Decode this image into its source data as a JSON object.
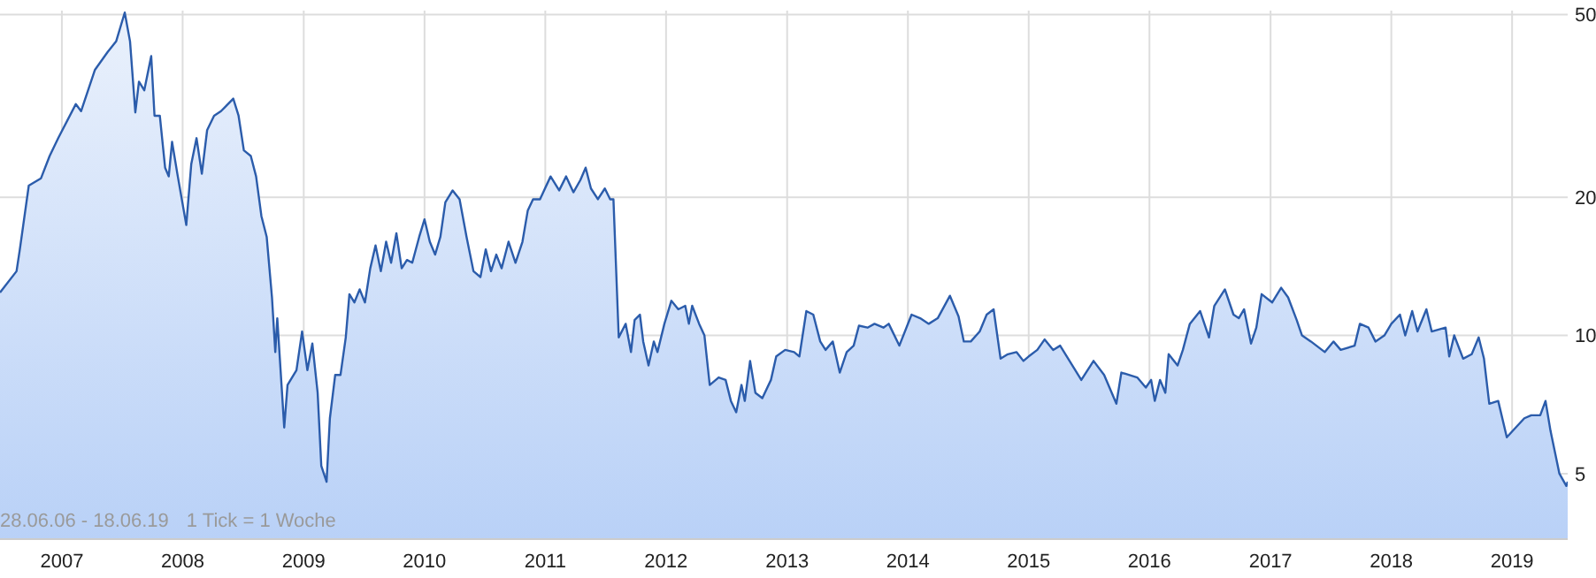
{
  "chart_data": {
    "type": "area",
    "log": true,
    "grid": true,
    "xlim": [
      "2006-06-28",
      "2019-06-18"
    ],
    "xticks": [
      {
        "value": "2007",
        "label": "2007"
      },
      {
        "value": "2008",
        "label": "2008"
      },
      {
        "value": "2009",
        "label": "2009"
      },
      {
        "value": "2010",
        "label": "2010"
      },
      {
        "value": "2011",
        "label": "2011"
      },
      {
        "value": "2012",
        "label": "2012"
      },
      {
        "value": "2013",
        "label": "2013"
      },
      {
        "value": "2014",
        "label": "2014"
      },
      {
        "value": "2015",
        "label": "2015"
      },
      {
        "value": "2016",
        "label": "2016"
      },
      {
        "value": "2017",
        "label": "2017"
      },
      {
        "value": "2018",
        "label": "2018"
      },
      {
        "value": "2019",
        "label": "2019"
      }
    ],
    "ylim": [
      3.6,
      51
    ],
    "yticks": [
      5,
      10,
      20,
      50
    ],
    "annotations": [
      "28.06.06 - 18.06.19",
      "1 Tick = 1 Woche"
    ],
    "x": [
      "2006-06-28",
      "2006-08-17",
      "2006-08-27",
      "2006-09-23",
      "2006-10-30",
      "2006-11-25",
      "2006-12-21",
      "2007-02-12",
      "2007-02-28",
      "2007-04-11",
      "2007-05-19",
      "2007-06-14",
      "2007-07-10",
      "2007-07-26",
      "2007-08-11",
      "2007-08-22",
      "2007-09-07",
      "2007-09-28",
      "2007-10-08",
      "2007-10-24",
      "2007-11-09",
      "2007-11-20",
      "2007-11-30",
      "2007-12-16",
      "2008-01-12",
      "2008-01-27",
      "2008-02-12",
      "2008-02-28",
      "2008-03-15",
      "2008-04-05",
      "2008-04-26",
      "2008-06-02",
      "2008-06-18",
      "2008-07-04",
      "2008-07-25",
      "2008-08-10",
      "2008-08-26",
      "2008-09-11",
      "2008-09-27",
      "2008-10-07",
      "2008-10-13",
      "2008-10-23",
      "2008-11-03",
      "2008-11-13",
      "2008-12-10",
      "2008-12-27",
      "2009-01-12",
      "2009-01-27",
      "2009-02-12",
      "2009-02-23",
      "2009-03-11",
      "2009-03-21",
      "2009-04-06",
      "2009-04-22",
      "2009-05-08",
      "2009-05-19",
      "2009-06-03",
      "2009-06-19",
      "2009-07-05",
      "2009-07-21",
      "2009-08-06",
      "2009-08-22",
      "2009-09-07",
      "2009-09-22",
      "2009-10-08",
      "2009-10-24",
      "2009-11-09",
      "2009-11-25",
      "2009-12-16",
      "2010-01-01",
      "2010-01-17",
      "2010-02-02",
      "2010-02-18",
      "2010-03-05",
      "2010-03-27",
      "2010-04-17",
      "2010-05-08",
      "2010-05-29",
      "2010-06-19",
      "2010-07-05",
      "2010-07-21",
      "2010-08-06",
      "2010-08-22",
      "2010-09-12",
      "2010-10-03",
      "2010-10-24",
      "2010-11-09",
      "2010-11-25",
      "2010-12-16",
      "2011-01-17",
      "2011-02-12",
      "2011-03-05",
      "2011-03-27",
      "2011-04-17",
      "2011-05-03",
      "2011-05-19",
      "2011-06-09",
      "2011-06-30",
      "2011-07-16",
      "2011-07-26",
      "2011-08-11",
      "2011-09-01",
      "2011-09-17",
      "2011-09-28",
      "2011-10-14",
      "2011-10-24",
      "2011-11-09",
      "2011-11-25",
      "2011-12-06",
      "2011-12-27",
      "2012-01-17",
      "2012-02-07",
      "2012-02-28",
      "2012-03-10",
      "2012-03-20",
      "2012-04-10",
      "2012-04-26",
      "2012-05-12",
      "2012-06-08",
      "2012-06-29",
      "2012-07-15",
      "2012-07-31",
      "2012-08-16",
      "2012-08-26",
      "2012-09-11",
      "2012-09-27",
      "2012-10-18",
      "2012-11-13",
      "2012-11-29",
      "2012-12-26",
      "2013-01-22",
      "2013-02-07",
      "2013-02-28",
      "2013-03-21",
      "2013-04-11",
      "2013-04-27",
      "2013-05-19",
      "2013-06-09",
      "2013-06-30",
      "2013-07-21",
      "2013-08-06",
      "2013-09-01",
      "2013-09-22",
      "2013-10-19",
      "2013-11-04",
      "2013-12-06",
      "2014-01-12",
      "2014-02-07",
      "2014-03-05",
      "2014-04-01",
      "2014-05-08",
      "2014-06-03",
      "2014-06-19",
      "2014-07-10",
      "2014-08-06",
      "2014-08-27",
      "2014-09-17",
      "2014-10-08",
      "2014-10-30",
      "2014-11-25",
      "2014-12-16",
      "2015-01-01",
      "2015-01-27",
      "2015-02-18",
      "2015-03-16",
      "2015-04-06",
      "2015-06-09",
      "2015-07-16",
      "2015-08-17",
      "2015-09-23",
      "2015-10-08",
      "2015-11-25",
      "2015-12-21",
      "2016-01-06",
      "2016-01-17",
      "2016-02-02",
      "2016-02-18",
      "2016-02-28",
      "2016-03-26",
      "2016-04-11",
      "2016-05-02",
      "2016-06-02",
      "2016-06-29",
      "2016-07-15",
      "2016-08-16",
      "2016-09-11",
      "2016-09-27",
      "2016-10-13",
      "2016-11-03",
      "2016-11-19",
      "2016-12-05",
      "2017-01-06",
      "2017-02-02",
      "2017-02-23",
      "2017-03-21",
      "2017-04-06",
      "2017-05-03",
      "2017-06-14",
      "2017-07-10",
      "2017-08-01",
      "2017-09-12",
      "2017-09-28",
      "2017-10-24",
      "2017-11-14",
      "2017-12-11",
      "2018-01-01",
      "2018-01-27",
      "2018-02-12",
      "2018-03-05",
      "2018-03-21",
      "2018-04-17",
      "2018-05-03",
      "2018-06-14",
      "2018-06-25",
      "2018-07-10",
      "2018-08-06",
      "2018-09-01",
      "2018-09-22",
      "2018-10-08",
      "2018-10-24",
      "2018-11-20",
      "2018-12-16",
      "2019-01-12",
      "2019-02-07",
      "2019-02-28",
      "2019-03-27",
      "2019-04-12",
      "2019-04-27",
      "2019-05-24",
      "2019-06-14",
      "2019-06-18"
    ],
    "series": [
      {
        "color": "#2b5cab",
        "values": [
          12.4,
          13.8,
          15.4,
          21.2,
          22.0,
          24.6,
          26.9,
          31.9,
          30.8,
          37.9,
          41.4,
          43.7,
          50.5,
          43.7,
          30.6,
          35.7,
          34.2,
          40.6,
          30.1,
          30.1,
          23.2,
          22.2,
          26.4,
          22.5,
          17.4,
          23.6,
          26.9,
          22.5,
          28.0,
          30.1,
          30.8,
          32.8,
          30.1,
          25.3,
          24.6,
          22.2,
          18.2,
          16.4,
          12.1,
          9.2,
          10.9,
          8.4,
          6.3,
          7.8,
          8.4,
          10.2,
          8.4,
          9.6,
          7.5,
          5.2,
          4.8,
          6.6,
          8.2,
          8.2,
          9.9,
          12.3,
          11.8,
          12.6,
          11.8,
          14.0,
          15.7,
          13.8,
          16.0,
          14.4,
          16.7,
          14.0,
          14.6,
          14.4,
          16.4,
          17.9,
          16.0,
          15.0,
          16.4,
          19.5,
          20.7,
          19.8,
          16.4,
          13.8,
          13.4,
          15.4,
          13.8,
          15.0,
          14.0,
          16.0,
          14.4,
          16.0,
          18.7,
          19.8,
          19.8,
          22.2,
          20.7,
          22.2,
          20.5,
          21.8,
          23.2,
          20.9,
          19.8,
          20.9,
          19.8,
          19.8,
          9.9,
          10.6,
          9.2,
          10.8,
          11.1,
          9.7,
          8.6,
          9.7,
          9.2,
          10.6,
          11.9,
          11.4,
          11.6,
          10.6,
          11.6,
          10.6,
          10.0,
          7.8,
          8.1,
          8.0,
          7.2,
          6.8,
          7.8,
          7.2,
          8.8,
          7.5,
          7.3,
          8.0,
          9.0,
          9.3,
          9.2,
          9.0,
          11.3,
          11.1,
          9.7,
          9.3,
          9.7,
          8.3,
          9.2,
          9.5,
          10.5,
          10.4,
          10.6,
          10.4,
          10.6,
          9.5,
          11.1,
          10.9,
          10.6,
          10.9,
          12.2,
          11.0,
          9.7,
          9.7,
          10.2,
          11.1,
          11.4,
          8.9,
          9.1,
          9.2,
          8.8,
          9.0,
          9.3,
          9.8,
          9.3,
          9.5,
          8.0,
          8.8,
          8.2,
          7.1,
          8.3,
          8.1,
          7.7,
          8.0,
          7.2,
          8.0,
          7.5,
          9.1,
          8.6,
          9.3,
          10.6,
          11.3,
          9.9,
          11.6,
          12.6,
          11.1,
          10.9,
          11.4,
          9.6,
          10.4,
          12.3,
          11.8,
          12.7,
          12.1,
          10.8,
          10.0,
          9.7,
          9.2,
          9.7,
          9.3,
          9.5,
          10.6,
          10.4,
          9.7,
          10.0,
          10.6,
          11.1,
          10.0,
          11.3,
          10.2,
          11.4,
          10.2,
          10.4,
          9.0,
          10.0,
          8.9,
          9.1,
          9.9,
          8.9,
          7.1,
          7.2,
          6.0,
          6.3,
          6.6,
          6.7,
          6.7,
          7.2,
          6.2,
          5.0,
          4.7,
          4.8
        ]
      }
    ]
  }
}
